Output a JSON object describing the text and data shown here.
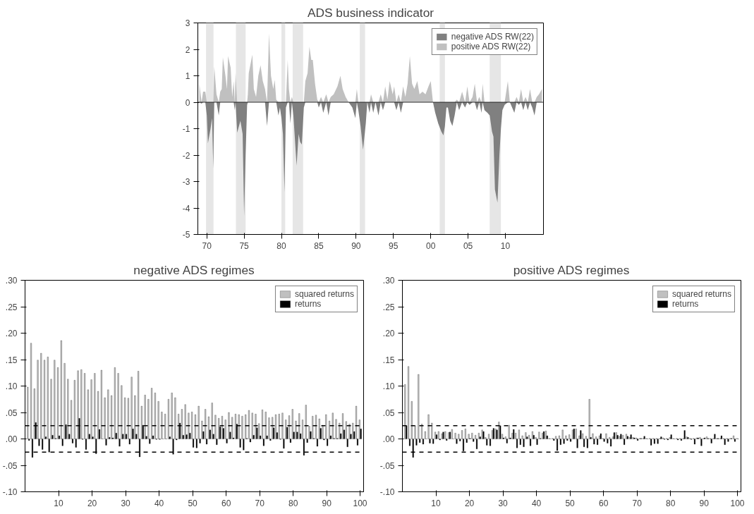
{
  "chart_data": [
    {
      "type": "area",
      "title": "ADS business indicator",
      "xlim": [
        1968.8,
        2015.1
      ],
      "ylim": [
        -5,
        3
      ],
      "xticks": [
        {
          "value": 1970,
          "label": "70"
        },
        {
          "value": 1975,
          "label": "75"
        },
        {
          "value": 1980,
          "label": "80"
        },
        {
          "value": 1985,
          "label": "85"
        },
        {
          "value": 1990,
          "label": "90"
        },
        {
          "value": 1995,
          "label": "95"
        },
        {
          "value": 2000,
          "label": "00"
        },
        {
          "value": 2005,
          "label": "05"
        },
        {
          "value": 2010,
          "label": "10"
        }
      ],
      "yticks": [
        -5,
        -4,
        -3,
        -2,
        -1,
        0,
        1,
        2,
        3
      ],
      "grid": false,
      "legend": "top right",
      "x": [
        1969.0,
        1969.3,
        1969.5,
        1969.8,
        1970.0,
        1970.15,
        1970.5,
        1970.7,
        1970.87,
        1971.0,
        1971.3,
        1971.6,
        1971.8,
        1972.0,
        1972.15,
        1972.5,
        1972.7,
        1972.85,
        1973.2,
        1973.4,
        1973.6,
        1973.75,
        1973.85,
        1974.07,
        1974.5,
        1974.8,
        1975.0,
        1975.2,
        1975.4,
        1975.5,
        1975.62,
        1976.1,
        1976.3,
        1976.6,
        1976.9,
        1977.2,
        1977.5,
        1977.8,
        1978.07,
        1978.33,
        1978.6,
        1978.9,
        1979.1,
        1979.3,
        1979.6,
        1979.8,
        1980.0,
        1980.2,
        1980.41,
        1980.6,
        1980.84,
        1981.0,
        1981.2,
        1981.4,
        1981.6,
        1982.03,
        1982.3,
        1982.5,
        1982.73,
        1983.0,
        1983.2,
        1983.5,
        1983.75,
        1984.0,
        1984.2,
        1984.5,
        1984.8,
        1985.0,
        1985.3,
        1985.6,
        1986.0,
        1986.3,
        1986.6,
        1987.0,
        1987.5,
        1987.9,
        1988.2,
        1988.6,
        1989.0,
        1989.5,
        1989.9,
        1990.1,
        1990.3,
        1990.6,
        1990.93,
        1991.3,
        1991.5,
        1991.8,
        1992.0,
        1992.3,
        1992.6,
        1993.0,
        1993.3,
        1993.6,
        1993.9,
        1994.2,
        1994.5,
        1994.9,
        1995.1,
        1995.4,
        1995.7,
        1996.0,
        1996.3,
        1996.6,
        1996.9,
        1997.2,
        1997.5,
        1997.8,
        1998.2,
        1998.5,
        1998.9,
        1999.3,
        1999.7,
        2000.0,
        2000.3,
        2000.6,
        2001.0,
        2001.4,
        2001.7,
        2001.9,
        2002.1,
        2002.3,
        2002.6,
        2002.9,
        2003.2,
        2003.5,
        2003.8,
        2004.2,
        2004.6,
        2004.9,
        2005.2,
        2005.6,
        2005.9,
        2006.2,
        2006.5,
        2006.8,
        2006.95,
        2007.2,
        2007.6,
        2007.9,
        2008.2,
        2008.4,
        2008.6,
        2008.94,
        2009.2,
        2009.4,
        2009.6,
        2009.9,
        2010.33,
        2010.6,
        2010.9,
        2011.2,
        2011.5,
        2011.8,
        2012.1,
        2012.4,
        2012.7,
        2013.0,
        2013.3,
        2013.6,
        2013.9,
        2014.2,
        2014.5,
        2014.9
      ],
      "series": [
        {
          "name": "negative ADS RW(22)",
          "color": "#808080",
          "values": [
            0,
            -0.05,
            0,
            0,
            -0.5,
            -1.55,
            -1.0,
            -0.6,
            -2.5,
            0,
            0,
            -0.5,
            0,
            0,
            0,
            0,
            0,
            0,
            0,
            0,
            0,
            -0.3,
            0,
            -1.15,
            -0.7,
            -1.2,
            -4.3,
            -2.0,
            -0.1,
            0,
            0,
            0,
            0,
            0,
            0,
            0,
            0,
            0,
            -0.9,
            0,
            0,
            0,
            0,
            0,
            -0.5,
            -0.2,
            -0.6,
            -1.2,
            -3.4,
            -0.2,
            0,
            0,
            -0.8,
            0,
            -0.5,
            -2.4,
            -1.2,
            -1.5,
            -1.6,
            -0.2,
            0,
            0,
            0,
            0,
            0,
            0,
            0,
            -0.2,
            0,
            -0.4,
            0,
            -0.5,
            0,
            0,
            0,
            0,
            0,
            0,
            0,
            -0.2,
            -0.6,
            0,
            -0.3,
            -0.9,
            -1.8,
            -0.8,
            0,
            -0.4,
            0,
            -0.4,
            0,
            -0.5,
            0,
            -0.3,
            0,
            0,
            0,
            0,
            0,
            -0.3,
            0,
            -0.4,
            0,
            0,
            0,
            0,
            0,
            0,
            0,
            0,
            0,
            0,
            0,
            0,
            0,
            -0.4,
            -0.8,
            -1.1,
            -1.25,
            -0.9,
            -0.2,
            -0.2,
            -0.7,
            -0.9,
            -0.5,
            0,
            -0.3,
            0,
            -0.2,
            0,
            -0.1,
            0,
            0,
            -0.3,
            0,
            -0.4,
            0,
            -0.3,
            -0.4,
            -0.5,
            -1.1,
            -1.3,
            -3.3,
            -3.8,
            -2.0,
            -1.0,
            -0.3,
            -0.1,
            0,
            0,
            -0.2,
            -0.4,
            0,
            -0.1,
            0,
            -0.3,
            0,
            -0.3,
            0,
            -0.2,
            -0.5,
            0,
            0,
            0
          ]
        },
        {
          "name": "positive ADS RW(22)",
          "color": "#c0c0c0",
          "values": [
            0.7,
            0,
            0.4,
            0.4,
            0,
            0,
            0,
            0,
            0,
            1.35,
            0.3,
            0,
            0.4,
            0.5,
            1.7,
            1.0,
            0.5,
            1.75,
            1.3,
            0.2,
            0.8,
            0,
            1.1,
            0,
            0,
            0,
            0,
            0,
            0,
            0.3,
            1.1,
            1.8,
            0.5,
            0.2,
            1.0,
            1.4,
            0.8,
            0.5,
            0,
            2.6,
            1.0,
            0.5,
            0.85,
            0.1,
            0,
            0,
            0,
            0,
            0,
            0,
            1.6,
            0.5,
            0,
            0.2,
            0,
            0,
            0,
            0,
            0,
            0,
            0.8,
            1.1,
            2.1,
            1.6,
            1.6,
            0.7,
            0.1,
            0,
            0.2,
            0,
            0.3,
            0,
            0.2,
            0.3,
            0.6,
            1.0,
            0.5,
            0.2,
            0,
            0,
            0,
            0.5,
            0,
            0,
            0,
            0,
            0,
            0,
            0.3,
            0,
            0,
            0,
            0.3,
            0,
            0.6,
            0.1,
            0.8,
            0.3,
            0.6,
            0,
            0.3,
            0,
            0.6,
            0.2,
            0.7,
            1.75,
            0.7,
            0.5,
            0.8,
            0.3,
            0.4,
            0.3,
            0.6,
            0.8,
            0,
            0,
            0,
            0,
            0,
            0,
            0,
            0,
            0,
            0,
            0,
            0.1,
            0,
            0.4,
            0,
            0.6,
            0,
            0.2,
            0.7,
            0,
            0.2,
            0,
            0.7,
            0,
            0,
            0,
            0,
            0,
            0,
            0,
            0,
            0,
            0,
            0,
            0.8,
            0,
            0,
            0,
            0.2,
            0,
            0.5,
            0,
            0.2,
            0,
            0.5,
            0,
            0,
            0.2,
            0.3,
            0.5
          ]
        }
      ],
      "ref_lines": [
        {
          "axis": "y",
          "value": 0,
          "color": "#000000",
          "line_style": "solid"
        }
      ],
      "bands": [
        {
          "axis": "x",
          "from": 1969.9,
          "to": 1970.9,
          "color": "#e6e6e6"
        },
        {
          "axis": "x",
          "from": 1973.9,
          "to": 1975.2,
          "color": "#e6e6e6"
        },
        {
          "axis": "x",
          "from": 1980.0,
          "to": 1980.5,
          "color": "#e6e6e6"
        },
        {
          "axis": "x",
          "from": 1981.5,
          "to": 1982.9,
          "color": "#e6e6e6"
        },
        {
          "axis": "x",
          "from": 1990.5,
          "to": 1991.2,
          "color": "#e6e6e6"
        },
        {
          "axis": "x",
          "from": 2001.2,
          "to": 2001.9,
          "color": "#e6e6e6"
        },
        {
          "axis": "x",
          "from": 2007.9,
          "to": 2009.4,
          "color": "#e6e6e6"
        }
      ]
    },
    {
      "type": "bar",
      "title": "negative ADS regimes",
      "xlim": [
        0,
        101
      ],
      "ylim": [
        -0.1,
        0.3
      ],
      "xticks": [
        10,
        20,
        30,
        40,
        50,
        60,
        70,
        80,
        90,
        100
      ],
      "yticks": [
        {
          "value": -0.1,
          "label": "-.10"
        },
        {
          "value": -0.05,
          "label": "-.05"
        },
        {
          "value": 0,
          "label": ".00"
        },
        {
          "value": 0.05,
          "label": ".05"
        },
        {
          "value": 0.1,
          "label": ".10"
        },
        {
          "value": 0.15,
          "label": ".15"
        },
        {
          "value": 0.2,
          "label": ".20"
        },
        {
          "value": 0.25,
          "label": ".25"
        },
        {
          "value": 0.3,
          "label": ".30"
        }
      ],
      "grid": false,
      "legend": "top right",
      "x": [
        1,
        2,
        3,
        4,
        5,
        6,
        7,
        8,
        9,
        10,
        11,
        12,
        13,
        14,
        15,
        16,
        17,
        18,
        19,
        20,
        21,
        22,
        23,
        24,
        25,
        26,
        27,
        28,
        29,
        30,
        31,
        32,
        33,
        34,
        35,
        36,
        37,
        38,
        39,
        40,
        41,
        42,
        43,
        44,
        45,
        46,
        47,
        48,
        49,
        50,
        51,
        52,
        53,
        54,
        55,
        56,
        57,
        58,
        59,
        60,
        61,
        62,
        63,
        64,
        65,
        66,
        67,
        68,
        69,
        70,
        71,
        72,
        73,
        74,
        75,
        76,
        77,
        78,
        79,
        80,
        81,
        82,
        83,
        84,
        85,
        86,
        87,
        88,
        89,
        90,
        91,
        92,
        93,
        94,
        95,
        96,
        97,
        98,
        99,
        100
      ],
      "series": [
        {
          "name": "squared returns",
          "color": "#c0c0c0",
          "values": [
            0.098,
            0.181,
            0.095,
            0.149,
            0.162,
            0.149,
            0.155,
            0.113,
            0.149,
            0.135,
            0.186,
            0.143,
            0.113,
            0.073,
            0.111,
            0.129,
            0.131,
            0.124,
            0.093,
            0.112,
            0.124,
            0.09,
            0.13,
            0.078,
            0.093,
            0.082,
            0.135,
            0.124,
            0.101,
            0.078,
            0.077,
            0.117,
            0.082,
            0.128,
            0.062,
            0.083,
            0.075,
            0.096,
            0.087,
            0.071,
            0.051,
            0.047,
            0.075,
            0.087,
            0.078,
            0.047,
            0.056,
            0.065,
            0.049,
            0.051,
            0.046,
            0.062,
            0.034,
            0.056,
            0.042,
            0.068,
            0.045,
            0.039,
            0.043,
            0.036,
            0.05,
            0.041,
            0.047,
            0.046,
            0.043,
            0.046,
            0.054,
            0.049,
            0.047,
            0.029,
            0.055,
            0.051,
            0.04,
            0.041,
            0.046,
            0.047,
            0.049,
            0.036,
            0.044,
            0.056,
            0.034,
            0.048,
            0.036,
            0.064,
            0.024,
            0.043,
            0.045,
            0.038,
            0.026,
            0.046,
            0.034,
            0.049,
            0.037,
            0.03,
            0.048,
            0.033,
            0.028,
            0.03,
            0.062,
            0.036
          ]
        },
        {
          "name": "returns",
          "color": "#000000",
          "values": [
            -0.003,
            -0.035,
            0.031,
            -0.013,
            -0.02,
            0.004,
            -0.025,
            0.007,
            0.001,
            0.006,
            -0.013,
            0.027,
            0.009,
            -0.008,
            -0.016,
            0.039,
            -0.001,
            -0.02,
            0.009,
            0.004,
            -0.028,
            0.018,
            0.0,
            -0.012,
            0.003,
            0.002,
            0.011,
            -0.014,
            0.009,
            0.009,
            -0.01,
            0.019,
            0.009,
            -0.034,
            0.026,
            0.005,
            -0.009,
            0.006,
            -0.001,
            -0.001,
            0.0,
            0.0,
            0.004,
            -0.029,
            -0.002,
            0.03,
            0.007,
            0.008,
            0.011,
            -0.016,
            -0.017,
            -0.008,
            0.014,
            -0.01,
            0.017,
            0.009,
            -0.011,
            0.023,
            0.02,
            -0.008,
            0.013,
            0.002,
            0.028,
            -0.016,
            -0.021,
            0.001,
            -0.006,
            0.007,
            0.021,
            0.006,
            -0.013,
            0.006,
            -0.003,
            0.021,
            0.012,
            -0.001,
            -0.018,
            0.022,
            -0.007,
            0.013,
            0.013,
            0.01,
            -0.031,
            -0.007,
            0.014,
            0.001,
            -0.014,
            0.02,
            -0.002,
            -0.013,
            0.006,
            0.001,
            0.001,
            0.01,
            0.017,
            -0.015,
            0.009,
            0.014,
            -0.012,
            0.019
          ]
        }
      ],
      "ref_lines": [
        {
          "axis": "y",
          "value": 0.025,
          "color": "#000000",
          "line_style": "dashed"
        },
        {
          "axis": "y",
          "value": -0.025,
          "color": "#000000",
          "line_style": "dashed"
        }
      ]
    },
    {
      "type": "bar",
      "title": "positive ADS regimes",
      "xlim": [
        0,
        101
      ],
      "ylim": [
        -0.1,
        0.3
      ],
      "xticks": [
        10,
        20,
        30,
        40,
        50,
        60,
        70,
        80,
        90,
        100
      ],
      "yticks": [
        {
          "value": -0.1,
          "label": "-.10"
        },
        {
          "value": -0.05,
          "label": "-.05"
        },
        {
          "value": 0,
          "label": ".00"
        },
        {
          "value": 0.05,
          "label": ".05"
        },
        {
          "value": 0.1,
          "label": ".10"
        },
        {
          "value": 0.15,
          "label": ".15"
        },
        {
          "value": 0.2,
          "label": ".20"
        },
        {
          "value": 0.25,
          "label": ".25"
        },
        {
          "value": 0.3,
          "label": ".30"
        }
      ],
      "grid": false,
      "legend": "top right",
      "x": [
        1,
        2,
        3,
        4,
        5,
        6,
        7,
        8,
        9,
        10,
        11,
        12,
        13,
        14,
        15,
        16,
        17,
        18,
        19,
        20,
        21,
        22,
        23,
        24,
        25,
        26,
        27,
        28,
        29,
        30,
        31,
        32,
        33,
        34,
        35,
        36,
        37,
        38,
        39,
        40,
        41,
        42,
        43,
        44,
        45,
        46,
        47,
        48,
        49,
        50,
        51,
        52,
        53,
        54,
        55,
        56,
        57,
        58,
        59,
        60,
        61,
        62,
        63,
        64,
        65,
        66,
        67,
        68,
        69,
        70,
        71,
        72,
        73,
        74,
        75,
        76,
        77,
        78,
        79,
        80,
        81,
        82,
        83,
        84,
        85,
        86,
        87,
        88,
        89,
        90,
        91,
        92,
        93,
        94,
        95,
        96,
        97,
        98,
        99,
        100
      ],
      "series": [
        {
          "name": "squared returns",
          "color": "#c0c0c0",
          "values": [
            0.103,
            0.137,
            0.071,
            0.025,
            0.122,
            0.028,
            0.014,
            0.046,
            0.03,
            0.013,
            0.014,
            0.01,
            0.014,
            0.012,
            0.018,
            0.011,
            0.009,
            0.016,
            0.019,
            0.009,
            0.011,
            0.007,
            0.011,
            0.017,
            0.003,
            0.009,
            0.016,
            0.019,
            0.032,
            0.009,
            0.004,
            0.026,
            0.011,
            0.011,
            0.017,
            0.006,
            0.012,
            0.007,
            0.014,
            0.003,
            0.013,
            0.011,
            0.015,
            0.001,
            0.001,
            0.005,
            0.006,
            0.017,
            0.006,
            0.008,
            0.017,
            0.019,
            0.006,
            0.01,
            0.005,
            0.075,
            0.01,
            0.004,
            0.006,
            0.001,
            0.01,
            0.003,
            0.004,
            0.012,
            0.005,
            0.007,
            0.009,
            0.003,
            0.003,
            0.002,
            0.001,
            0.001,
            0.001,
            0.001,
            0.001,
            0.001,
            0.001,
            0.002,
            0.001,
            0.003,
            0.001,
            0.001,
            0.001,
            0.001,
            0.004,
            0.001,
            0.001,
            0.002,
            0.003,
            0.001,
            0.004,
            0.001,
            0.001,
            0.001,
            0.001,
            0.001,
            0.001,
            0.001,
            0.006,
            0.001
          ]
        },
        {
          "name": "returns",
          "color": "#000000",
          "values": [
            0.025,
            -0.013,
            -0.035,
            -0.012,
            -0.007,
            -0.01,
            0.0,
            -0.008,
            -0.009,
            0.008,
            -0.002,
            0.013,
            -0.003,
            0.013,
            0.0,
            -0.009,
            -0.004,
            -0.023,
            -0.007,
            0.001,
            -0.005,
            -0.019,
            0.004,
            0.014,
            -0.012,
            -0.013,
            0.02,
            0.017,
            0.025,
            0.002,
            -0.008,
            0.002,
            0.018,
            -0.017,
            -0.011,
            -0.015,
            0.004,
            -0.013,
            0.007,
            -0.011,
            0.001,
            0.014,
            0.006,
            0.0,
            -0.003,
            -0.022,
            -0.011,
            -0.009,
            -0.003,
            -0.005,
            0.019,
            -0.017,
            0.016,
            -0.015,
            -0.017,
            0.003,
            -0.01,
            -0.011,
            0.01,
            -0.005,
            -0.008,
            -0.014,
            0.012,
            0.007,
            0.009,
            -0.011,
            0.005,
            0.008,
            0.002,
            -0.003,
            0.001,
            0.005,
            0.0,
            -0.012,
            -0.009,
            -0.009,
            0.004,
            -0.001,
            -0.002,
            0.008,
            0.0,
            -0.002,
            -0.003,
            0.016,
            0.003,
            -0.001,
            -0.01,
            0.002,
            -0.013,
            0.002,
            0.001,
            -0.008,
            0.009,
            0.001,
            0.006,
            -0.011,
            -0.005,
            0.001,
            -0.005,
            0.0
          ]
        }
      ],
      "ref_lines": [
        {
          "axis": "y",
          "value": 0.025,
          "color": "#000000",
          "line_style": "dashed"
        },
        {
          "axis": "y",
          "value": -0.025,
          "color": "#000000",
          "line_style": "dashed"
        }
      ]
    }
  ]
}
